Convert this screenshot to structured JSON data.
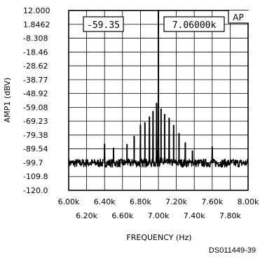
{
  "doc_id": "DS011449-39",
  "chart_data": {
    "type": "line",
    "xlabel": "FREQUENCY (Hz)",
    "ylabel": "AMP1 (dBV)",
    "xlim": [
      6000,
      8000
    ],
    "ylim": [
      -120.0,
      12.0
    ],
    "x_ticks_top_row": [
      "6.00k",
      "6.40k",
      "6.80k",
      "7.20k",
      "7.60k",
      "8.00k"
    ],
    "x_ticks_bottom_row": [
      "6.20k",
      "6.60k",
      "7.00k",
      "7.40k",
      "7.80k"
    ],
    "y_tick_labels": [
      "12.000",
      "1.8462",
      "-8.308",
      "-18.46",
      "-28.62",
      "-38.77",
      "-48.92",
      "-59.08",
      "-69.23",
      "-79.38",
      "-89.54",
      "-99.7",
      "-109.8",
      "-120.0"
    ],
    "grid": true,
    "annotations": {
      "cursor_amplitude": "-59.35",
      "cursor_frequency": "7.06000k",
      "corner_label": "AP"
    },
    "series": [
      {
        "noise_floor_dbv": -100,
        "peaks": [
          {
            "x": 6400,
            "y": -86
          },
          {
            "x": 6500,
            "y": -89
          },
          {
            "x": 6650,
            "y": -86
          },
          {
            "x": 6730,
            "y": -80
          },
          {
            "x": 6800,
            "y": -72
          },
          {
            "x": 6850,
            "y": -70
          },
          {
            "x": 6900,
            "y": -66
          },
          {
            "x": 6940,
            "y": -62
          },
          {
            "x": 6980,
            "y": -56
          },
          {
            "x": 7000,
            "y": 12
          },
          {
            "x": 7030,
            "y": -60
          },
          {
            "x": 7070,
            "y": -64
          },
          {
            "x": 7120,
            "y": -67
          },
          {
            "x": 7170,
            "y": -72
          },
          {
            "x": 7230,
            "y": -78
          },
          {
            "x": 7300,
            "y": -85
          },
          {
            "x": 7380,
            "y": -91
          },
          {
            "x": 7600,
            "y": -88
          }
        ]
      }
    ]
  }
}
